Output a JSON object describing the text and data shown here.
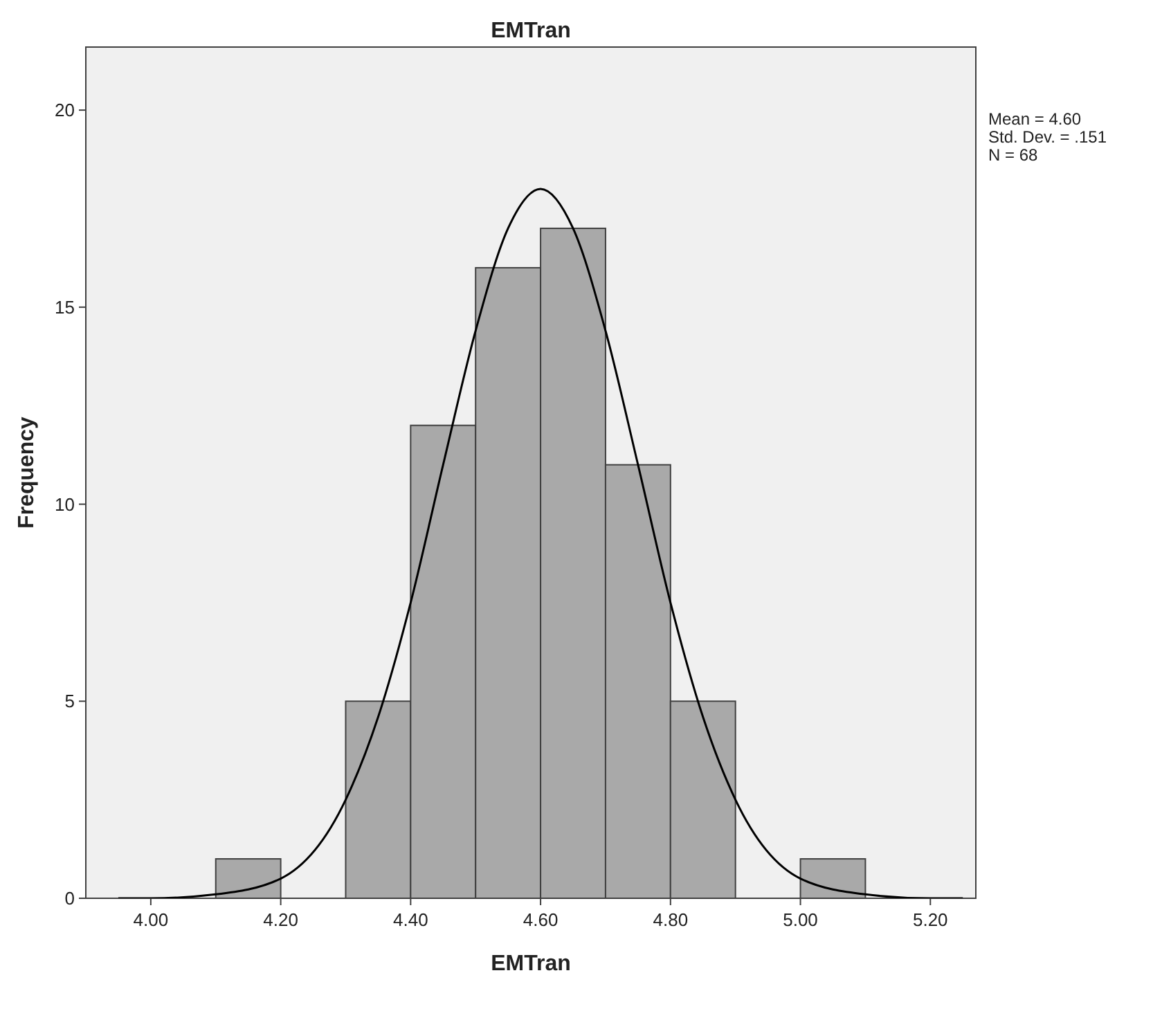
{
  "chart_data": {
    "type": "histogram",
    "title": "EMTran",
    "xlabel": "EMTran",
    "ylabel": "Frequency",
    "bins": [
      4.1,
      4.2,
      4.3,
      4.4,
      4.5,
      4.6,
      4.7,
      4.8,
      4.9,
      5.0,
      5.1
    ],
    "values": [
      1,
      0,
      5,
      12,
      16,
      17,
      11,
      5,
      0,
      1
    ],
    "color": "#a9a9a9",
    "series": [
      {
        "type": "line",
        "color": "#000000",
        "x": [
          3.95,
          4.0,
          4.1,
          4.2,
          4.3,
          4.35,
          4.4,
          4.45,
          4.5,
          4.55,
          4.6,
          4.65,
          4.7,
          4.75,
          4.8,
          4.85,
          4.9,
          5.0,
          5.1,
          5.2,
          5.25
        ],
        "values": [
          0,
          0,
          0.1,
          0.5,
          2.5,
          4.6,
          7.5,
          11,
          14.4,
          17,
          18,
          17,
          14.4,
          11,
          7.5,
          4.6,
          2.5,
          0.5,
          0.1,
          0,
          0
        ]
      }
    ],
    "xlim": [
      3.9,
      5.27
    ],
    "ylim": [
      0,
      21.6
    ],
    "xticks": [
      {
        "value": 4.0,
        "label": "4.00"
      },
      {
        "value": 4.2,
        "label": "4.20"
      },
      {
        "value": 4.4,
        "label": "4.40"
      },
      {
        "value": 4.6,
        "label": "4.60"
      },
      {
        "value": 4.8,
        "label": "4.80"
      },
      {
        "value": 5.0,
        "label": "5.00"
      },
      {
        "value": 5.2,
        "label": "5.20"
      }
    ],
    "yticks": [
      0,
      5,
      10,
      15,
      20
    ],
    "grid": false,
    "annotations": [
      "Mean = 4.60",
      "Std. Dev. = .151",
      "N = 68"
    ]
  }
}
